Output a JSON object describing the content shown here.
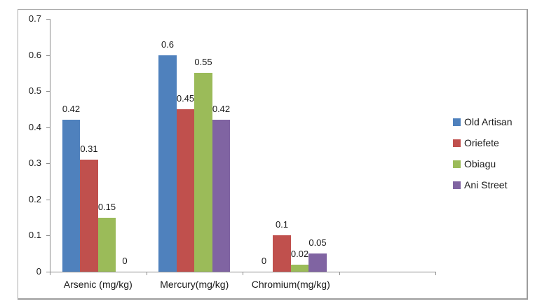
{
  "chart_data": {
    "type": "bar",
    "title": "",
    "xlabel": "",
    "ylabel": "",
    "grid": false,
    "legend_position": "right",
    "categories": [
      "Arsenic (mg/kg)",
      "Mercury(mg/kg)",
      "Chromium(mg/kg)"
    ],
    "series": [
      {
        "name": "Old Artisan",
        "color": "#4F81BD",
        "values": [
          0.42,
          0.6,
          0
        ],
        "labels": [
          "0.42",
          "0.6",
          "0"
        ]
      },
      {
        "name": "Oriefete",
        "color": "#C0504D",
        "values": [
          0.31,
          0.45,
          0.1
        ],
        "labels": [
          "0.31",
          "0.45",
          "0.1"
        ]
      },
      {
        "name": "Obiagu",
        "color": "#9BBB59",
        "values": [
          0.15,
          0.55,
          0.02
        ],
        "labels": [
          "0.15",
          "0.55",
          "0.02"
        ]
      },
      {
        "name": "Ani Street",
        "color": "#8064A2",
        "values": [
          0,
          0.42,
          0.05
        ],
        "labels": [
          "0",
          "0.42",
          "0.05"
        ]
      }
    ],
    "ylim": [
      0,
      0.7
    ],
    "yticks": [
      "0",
      "0.1",
      "0.2",
      "0.3",
      "0.4",
      "0.5",
      "0.6",
      "0.7"
    ],
    "x_slot_count": 4
  }
}
